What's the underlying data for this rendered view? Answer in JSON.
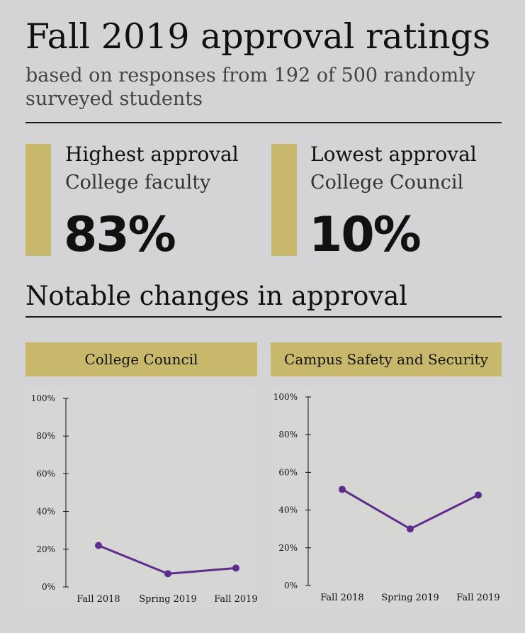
{
  "header": {
    "title": "Fall 2019 approval ratings",
    "subtitle": "based on responses from 192 of 500 randomly surveyed students"
  },
  "highlights": {
    "highest": {
      "label": "Highest approval",
      "group": "College faculty",
      "value": "83%"
    },
    "lowest": {
      "label": "Lowest approval",
      "group": "College Council",
      "value": "10%"
    }
  },
  "section": {
    "title": "Notable changes in approval"
  },
  "colors": {
    "accent": "#c8b86c",
    "line": "#5c2d8a",
    "background": "#d4d4d6",
    "plot_bg": "#d6d6d4"
  },
  "chart_data": [
    {
      "type": "line",
      "title": "College Council",
      "categories": [
        "Fall 2018",
        "Spring 2019",
        "Fall 2019"
      ],
      "values": [
        22,
        7,
        10
      ],
      "ylim": [
        0,
        100
      ],
      "yticks": [
        "0%",
        "20%",
        "40%",
        "60%",
        "80%",
        "100%"
      ],
      "grid": false
    },
    {
      "type": "line",
      "title": "Campus Safety and Security",
      "categories": [
        "Fall 2018",
        "Spring 2019",
        "Fall 2019"
      ],
      "values": [
        51,
        30,
        48
      ],
      "ylim": [
        0,
        100
      ],
      "yticks": [
        "0%",
        "20%",
        "40%",
        "60%",
        "80%",
        "100%"
      ],
      "grid": false
    }
  ]
}
